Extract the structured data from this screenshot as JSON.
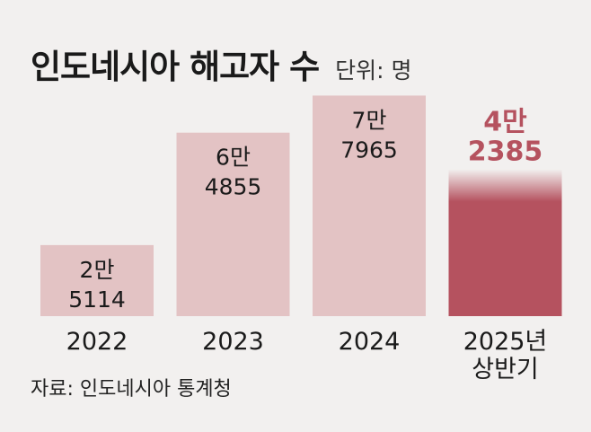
{
  "title": "인도네시아 해고자 수",
  "unit_label": "단위: 명",
  "source": "자료: 인도네시아 통계청",
  "colors": {
    "background": "#f2f0ef",
    "bar": "#e3c3c4",
    "highlight_bar": "#b5525f",
    "highlight_text": "#b5525f",
    "text": "#1a1a1a"
  },
  "chart_data": {
    "type": "bar",
    "categories": [
      "2022",
      "2023",
      "2024",
      "2025년\n상반기"
    ],
    "values": [
      25114,
      64855,
      77965,
      42385
    ],
    "value_labels": [
      "2만\n5114",
      "6만\n4855",
      "7만\n7965",
      "4만\n2385"
    ],
    "highlight_index": 3,
    "title": "인도네시아 해고자 수",
    "ylabel": "",
    "xlabel": "",
    "ylim": [
      0,
      80000
    ],
    "grid": false,
    "legend": "none"
  }
}
